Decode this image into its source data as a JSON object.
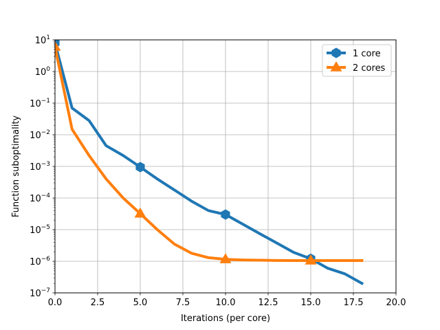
{
  "chart_data": {
    "type": "line",
    "title": "",
    "xlabel": "Iterations (per core)",
    "ylabel": "Function suboptimality",
    "xlim": [
      0,
      20
    ],
    "ylim": [
      1e-07,
      10
    ],
    "yscale": "log",
    "grid": true,
    "legend_position": "top-right",
    "x_ticks": [
      "0.0",
      "2.5",
      "5.0",
      "7.5",
      "10.0",
      "12.5",
      "15.0",
      "17.5",
      "20.0"
    ],
    "y_ticks": [
      {
        "base": "10",
        "exp": "1",
        "value": 10
      },
      {
        "base": "10",
        "exp": "0",
        "value": 1
      },
      {
        "base": "10",
        "exp": "−1",
        "value": 0.1
      },
      {
        "base": "10",
        "exp": "−2",
        "value": 0.01
      },
      {
        "base": "10",
        "exp": "−3",
        "value": 0.001
      },
      {
        "base": "10",
        "exp": "−4",
        "value": 0.0001
      },
      {
        "base": "10",
        "exp": "−5",
        "value": 1e-05
      },
      {
        "base": "10",
        "exp": "−6",
        "value": 1e-06
      },
      {
        "base": "10",
        "exp": "−7",
        "value": 1e-07
      }
    ],
    "series": [
      {
        "name": "1 core",
        "color": "#1f77b4",
        "marker": "hexagon",
        "x": [
          0,
          1,
          2,
          3,
          4,
          5,
          6,
          7,
          8,
          9,
          10,
          11,
          12,
          13,
          14,
          15,
          16,
          17,
          18
        ],
        "y": [
          8,
          0.07,
          0.028,
          0.0045,
          0.0022,
          0.00095,
          0.0004,
          0.00018,
          8e-05,
          4e-05,
          3e-05,
          1.5e-05,
          7.5e-06,
          3.8e-06,
          1.9e-06,
          1.2e-06,
          6e-07,
          4e-07,
          2e-07
        ],
        "marker_indices": [
          0,
          5,
          10,
          15
        ]
      },
      {
        "name": "2 cores",
        "color": "#ff7f0e",
        "marker": "triangle",
        "x": [
          0,
          1,
          2,
          3,
          4,
          5,
          6,
          7,
          8,
          9,
          10,
          11,
          12,
          13,
          14,
          15,
          16,
          17,
          18
        ],
        "y": [
          6,
          0.015,
          0.0022,
          0.0004,
          0.0001,
          3.2e-05,
          1e-05,
          3.5e-06,
          1.8e-06,
          1.3e-06,
          1.15e-06,
          1.1e-06,
          1.08e-06,
          1.06e-06,
          1.05e-06,
          1.05e-06,
          1.05e-06,
          1.05e-06,
          1.05e-06
        ],
        "marker_indices": [
          0,
          5,
          10,
          15
        ]
      }
    ]
  }
}
